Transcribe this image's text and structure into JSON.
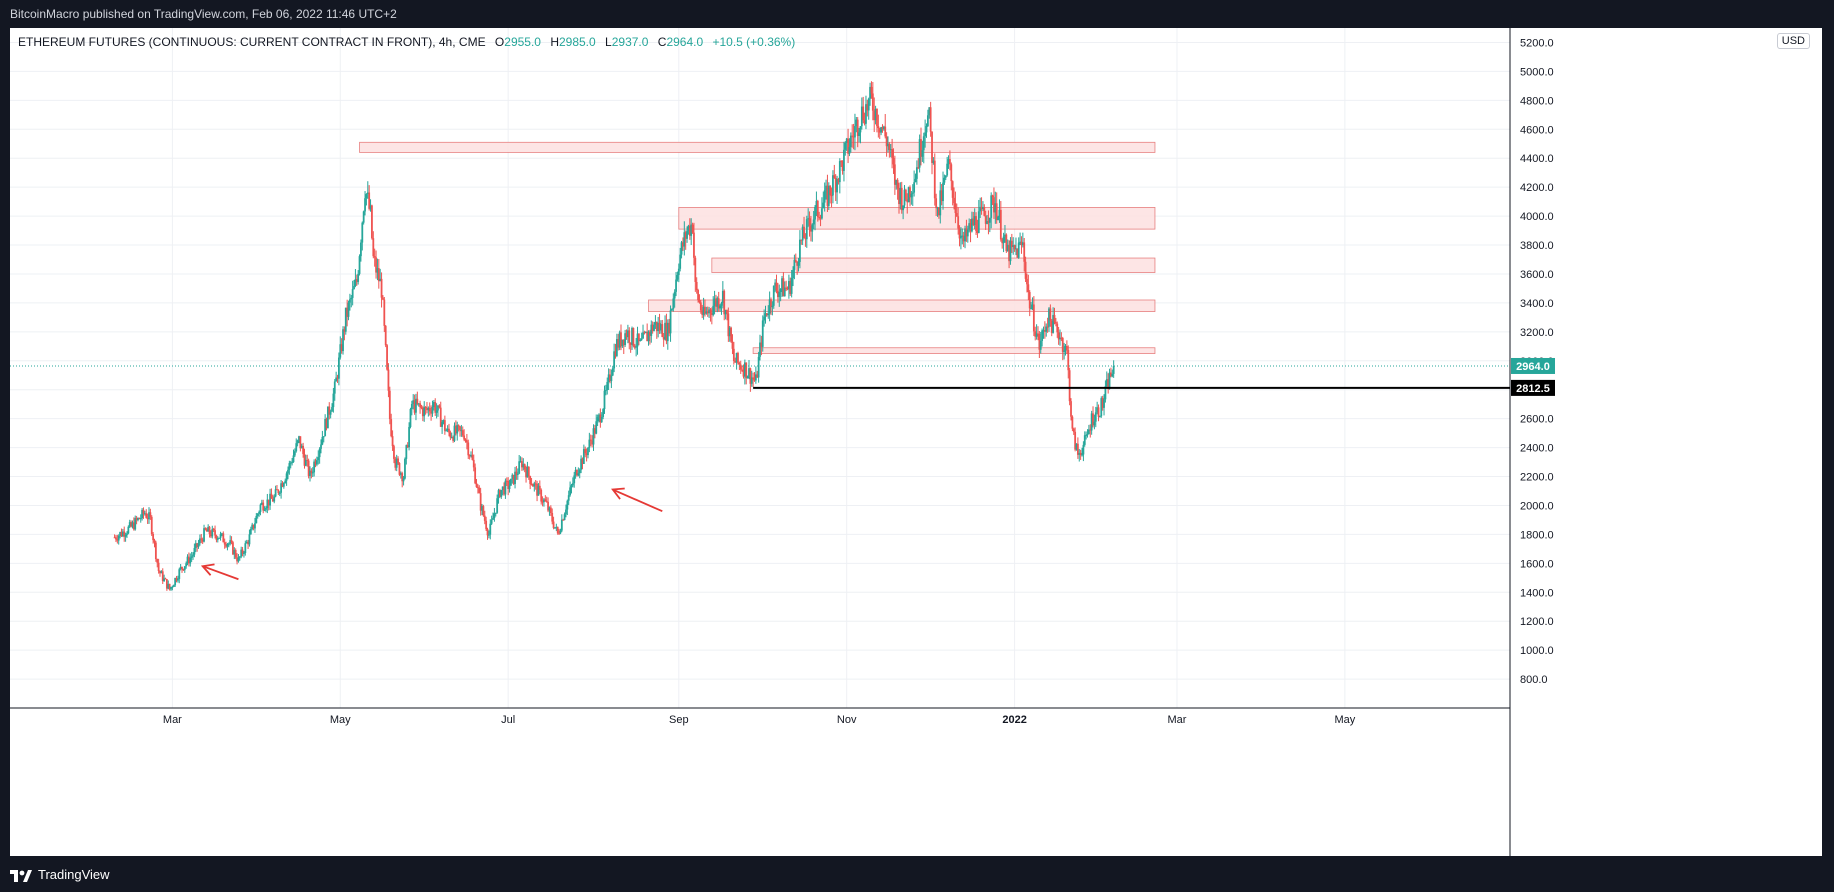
{
  "header": {
    "published": "BitcoinMacro published on TradingView.com, Feb 06, 2022 11:46 UTC+2"
  },
  "legend": {
    "symbol": "ETHEREUM FUTURES (CONTINUOUS: CURRENT CONTRACT IN FRONT), 4h, CME",
    "o_label": "O",
    "o_value": "2955.0",
    "h_label": "H",
    "h_value": "2985.0",
    "l_label": "L",
    "l_value": "2937.0",
    "c_label": "C",
    "c_value": "2964.0",
    "change": "+10.5 (+0.36%)"
  },
  "currency": "USD",
  "footer": {
    "brand": "TradingView"
  },
  "colors": {
    "up": "#26a69a",
    "down": "#ef5350",
    "zone_fill": "#fde3e3",
    "zone_stroke": "#e57373",
    "arrow": "#e53935",
    "grid": "#eef0f4",
    "current_price_bg": "#26a69a",
    "level_line": "#000000"
  },
  "chart_data": {
    "type": "candlestick",
    "ylim": [
      600,
      5300
    ],
    "yticks": [
      "800.0",
      "1000.0",
      "1200.0",
      "1400.0",
      "1600.0",
      "1800.0",
      "2000.0",
      "2200.0",
      "2400.0",
      "2600.0",
      "2800.0",
      "3000.0",
      "3200.0",
      "3400.0",
      "3600.0",
      "3800.0",
      "4000.0",
      "4200.0",
      "4400.0",
      "4600.0",
      "4800.0",
      "5000.0",
      "5200.0"
    ],
    "xlim": [
      "2021-01-01",
      "2022-06-30"
    ],
    "xticks": [
      {
        "date": "2021-03-01",
        "label": "Mar",
        "bold": false
      },
      {
        "date": "2021-05-01",
        "label": "May",
        "bold": false
      },
      {
        "date": "2021-07-01",
        "label": "Jul",
        "bold": false
      },
      {
        "date": "2021-09-01",
        "label": "Sep",
        "bold": false
      },
      {
        "date": "2021-11-01",
        "label": "Nov",
        "bold": false
      },
      {
        "date": "2022-01-01",
        "label": "2022",
        "bold": true
      },
      {
        "date": "2022-03-01",
        "label": "Mar",
        "bold": false
      },
      {
        "date": "2022-05-01",
        "label": "May",
        "bold": false
      }
    ],
    "price_path": [
      [
        "2021-02-08",
        1780
      ],
      [
        "2021-02-14",
        1850
      ],
      [
        "2021-02-19",
        1950
      ],
      [
        "2021-02-21",
        1900
      ],
      [
        "2021-02-24",
        1550
      ],
      [
        "2021-02-28",
        1420
      ],
      [
        "2021-03-04",
        1560
      ],
      [
        "2021-03-08",
        1650
      ],
      [
        "2021-03-13",
        1820
      ],
      [
        "2021-03-18",
        1790
      ],
      [
        "2021-03-22",
        1730
      ],
      [
        "2021-03-25",
        1620
      ],
      [
        "2021-03-29",
        1780
      ],
      [
        "2021-04-02",
        2000
      ],
      [
        "2021-04-07",
        2050
      ],
      [
        "2021-04-12",
        2250
      ],
      [
        "2021-04-16",
        2450
      ],
      [
        "2021-04-20",
        2200
      ],
      [
        "2021-04-24",
        2450
      ],
      [
        "2021-04-29",
        2800
      ],
      [
        "2021-05-03",
        3300
      ],
      [
        "2021-05-07",
        3550
      ],
      [
        "2021-05-10",
        4200
      ],
      [
        "2021-05-12",
        4000
      ],
      [
        "2021-05-13",
        3700
      ],
      [
        "2021-05-16",
        3500
      ],
      [
        "2021-05-19",
        2600
      ],
      [
        "2021-05-21",
        2300
      ],
      [
        "2021-05-24",
        2200
      ],
      [
        "2021-05-27",
        2700
      ],
      [
        "2021-06-01",
        2650
      ],
      [
        "2021-06-04",
        2700
      ],
      [
        "2021-06-09",
        2500
      ],
      [
        "2021-06-15",
        2500
      ],
      [
        "2021-06-18",
        2300
      ],
      [
        "2021-06-21",
        2000
      ],
      [
        "2021-06-24",
        1800
      ],
      [
        "2021-06-28",
        2100
      ],
      [
        "2021-07-02",
        2150
      ],
      [
        "2021-07-06",
        2300
      ],
      [
        "2021-07-10",
        2150
      ],
      [
        "2021-07-15",
        2000
      ],
      [
        "2021-07-19",
        1800
      ],
      [
        "2021-07-22",
        2000
      ],
      [
        "2021-07-26",
        2250
      ],
      [
        "2021-07-30",
        2400
      ],
      [
        "2021-08-03",
        2600
      ],
      [
        "2021-08-06",
        2800
      ],
      [
        "2021-08-09",
        3100
      ],
      [
        "2021-08-13",
        3200
      ],
      [
        "2021-08-18",
        3100
      ],
      [
        "2021-08-23",
        3250
      ],
      [
        "2021-08-28",
        3200
      ],
      [
        "2021-09-01",
        3700
      ],
      [
        "2021-09-04",
        3900
      ],
      [
        "2021-09-06",
        3950
      ],
      [
        "2021-09-07",
        3500
      ],
      [
        "2021-09-10",
        3300
      ],
      [
        "2021-09-14",
        3400
      ],
      [
        "2021-09-17",
        3450
      ],
      [
        "2021-09-21",
        3000
      ],
      [
        "2021-09-25",
        2950
      ],
      [
        "2021-09-29",
        2850
      ],
      [
        "2021-10-02",
        3300
      ],
      [
        "2021-10-06",
        3500
      ],
      [
        "2021-10-11",
        3500
      ],
      [
        "2021-10-15",
        3800
      ],
      [
        "2021-10-20",
        4000
      ],
      [
        "2021-10-24",
        4100
      ],
      [
        "2021-10-29",
        4300
      ],
      [
        "2021-11-02",
        4500
      ],
      [
        "2021-11-06",
        4700
      ],
      [
        "2021-11-10",
        4800
      ],
      [
        "2021-11-13",
        4650
      ],
      [
        "2021-11-16",
        4500
      ],
      [
        "2021-11-19",
        4200
      ],
      [
        "2021-11-22",
        4100
      ],
      [
        "2021-11-26",
        4300
      ],
      [
        "2021-11-30",
        4700
      ],
      [
        "2021-12-01",
        4650
      ],
      [
        "2021-12-04",
        4000
      ],
      [
        "2021-12-08",
        4350
      ],
      [
        "2021-12-13",
        3800
      ],
      [
        "2021-12-17",
        3950
      ],
      [
        "2021-12-21",
        4000
      ],
      [
        "2021-12-25",
        4100
      ],
      [
        "2021-12-29",
        3750
      ],
      [
        "2022-01-01",
        3750
      ],
      [
        "2022-01-04",
        3800
      ],
      [
        "2022-01-06",
        3450
      ],
      [
        "2022-01-10",
        3100
      ],
      [
        "2022-01-13",
        3300
      ],
      [
        "2022-01-17",
        3200
      ],
      [
        "2022-01-20",
        3050
      ],
      [
        "2022-01-22",
        2500
      ],
      [
        "2022-01-24",
        2350
      ],
      [
        "2022-01-27",
        2450
      ],
      [
        "2022-01-29",
        2600
      ],
      [
        "2022-02-02",
        2700
      ],
      [
        "2022-02-04",
        2850
      ],
      [
        "2022-02-06",
        2964
      ]
    ],
    "zones": [
      {
        "from": "2021-05-08",
        "to": "2022-02-21",
        "low": 4440,
        "high": 4510
      },
      {
        "from": "2021-09-01",
        "to": "2022-02-21",
        "low": 3910,
        "high": 4060
      },
      {
        "from": "2021-09-13",
        "to": "2022-02-21",
        "low": 3610,
        "high": 3710
      },
      {
        "from": "2021-08-21",
        "to": "2022-02-21",
        "low": 3340,
        "high": 3420
      },
      {
        "from": "2021-09-28",
        "to": "2022-02-21",
        "low": 3050,
        "high": 3090
      }
    ],
    "level_line": {
      "from": "2021-09-28",
      "price": 2812.5,
      "label": "2812.5"
    },
    "current_price": {
      "price": 2964,
      "label": "2964.0"
    },
    "arrows": [
      {
        "from_date": "2021-03-25",
        "from_price": 1490,
        "to_date": "2021-03-12",
        "to_price": 1580
      },
      {
        "from_date": "2021-08-26",
        "from_price": 1960,
        "to_date": "2021-08-08",
        "to_price": 2110
      }
    ]
  }
}
